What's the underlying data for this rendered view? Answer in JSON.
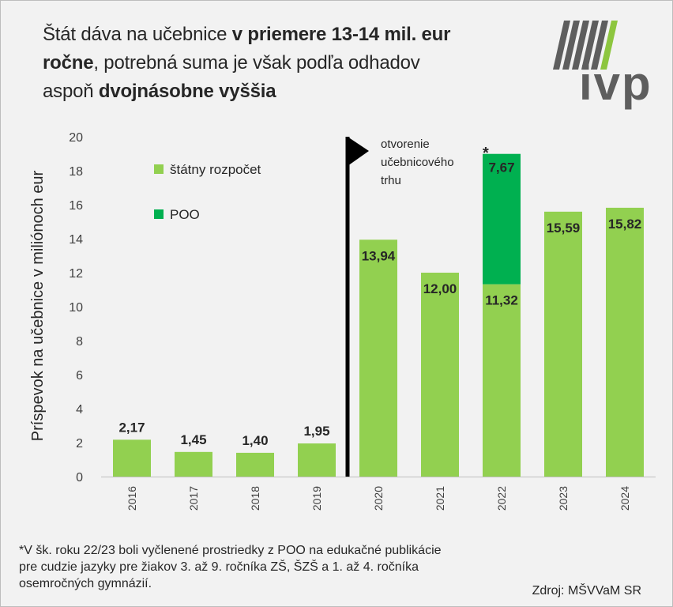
{
  "title": {
    "p1": "Štát dáva na učebnice ",
    "b1": "v priemere 13-14 mil. eur",
    "b2": "ročne",
    "p2": ", potrebná suma je však podľa odhadov",
    "p3": "aspoň ",
    "b3": "dvojnásobne vyššia"
  },
  "logo": {
    "text": "ivp",
    "icon": "ivp-stripes-logo"
  },
  "chart_data": {
    "type": "bar",
    "stacked": true,
    "categories": [
      "2016",
      "2017",
      "2018",
      "2019",
      "2020",
      "2021",
      "2022",
      "2023",
      "2024"
    ],
    "series": [
      {
        "name": "štátny rozpočet",
        "color": "#92d050",
        "values": [
          2.17,
          1.45,
          1.4,
          1.95,
          13.94,
          12.0,
          11.32,
          15.59,
          15.82
        ],
        "labels": [
          "2,17",
          "1,45",
          "1,40",
          "1,95",
          "13,94",
          "12,00",
          "11,32",
          "15,59",
          "15,82"
        ]
      },
      {
        "name": "POO",
        "color": "#00b050",
        "values": [
          0,
          0,
          0,
          0,
          0,
          0,
          7.67,
          0,
          0
        ],
        "labels": [
          "",
          "",
          "",
          "",
          "",
          "",
          "7,67",
          "",
          ""
        ]
      }
    ],
    "ylabel": "Príspevok na učebnice v miliónoch eur",
    "ylim": [
      0,
      20
    ],
    "yticks": [
      0,
      2,
      4,
      6,
      8,
      10,
      12,
      14,
      16,
      18,
      20
    ],
    "grid": false,
    "legend_position": "top-left",
    "annotations": {
      "marker_after_category": "2019",
      "marker_text": [
        "otvorenie",
        "učebnicového",
        "trhu"
      ],
      "asterisk": "*"
    }
  },
  "footnote": {
    "lines": [
      "*V šk. roku 22/23 boli vyčlenené prostriedky z POO na edukačné publikácie",
      "pre cudzie jazyky pre žiakov 3. až 9.  ročníka ZŠ, ŠZŠ a 1. až 4. ročníka",
      "osemročných gymnázií."
    ]
  },
  "source": "Zdroj: MŠVVaM SR"
}
